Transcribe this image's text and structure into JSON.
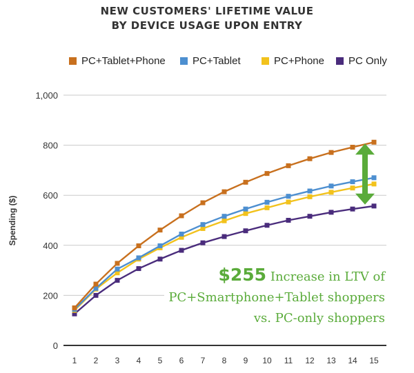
{
  "chart_data": {
    "type": "line",
    "title": "NEW CUSTOMERS' LIFETIME VALUE",
    "subtitle": "BY DEVICE USAGE UPON ENTRY",
    "xlabel": "",
    "ylabel": "Spending ($)",
    "x": [
      1,
      2,
      3,
      4,
      5,
      6,
      7,
      8,
      9,
      10,
      11,
      12,
      13,
      14,
      15
    ],
    "y_ticks": [
      "0",
      "200",
      "400",
      "600",
      "800",
      "1,000"
    ],
    "y_tick_values": [
      0,
      200,
      400,
      600,
      800,
      1000
    ],
    "ylim": [
      0,
      1000
    ],
    "grid": "horizontal",
    "legend_position": "top",
    "series": [
      {
        "name": "PC+Tablet+Phone",
        "color": "#c8701e",
        "values": [
          150,
          245,
          328,
          398,
          461,
          518,
          570,
          614,
          652,
          687,
          718,
          746,
          771,
          792,
          812
        ]
      },
      {
        "name": "PC+Tablet",
        "color": "#4d8fd0",
        "values": [
          144,
          228,
          305,
          350,
          398,
          445,
          483,
          516,
          545,
          572,
          596,
          617,
          637,
          654,
          670
        ]
      },
      {
        "name": "PC+Phone",
        "color": "#f2c21c",
        "values": [
          140,
          225,
          290,
          345,
          390,
          432,
          467,
          498,
          527,
          550,
          573,
          594,
          612,
          629,
          645
        ]
      },
      {
        "name": "PC Only",
        "color": "#4a2c7c",
        "values": [
          126,
          200,
          260,
          307,
          345,
          380,
          410,
          435,
          458,
          480,
          500,
          516,
          532,
          545,
          557
        ]
      }
    ],
    "annotation": {
      "highlight": "$255",
      "line1_rest": "Increase in LTV of",
      "line2": "PC+Smartphone+Tablet shoppers",
      "line3": "vs. PC-only shoppers",
      "color": "#5aab3a"
    }
  }
}
